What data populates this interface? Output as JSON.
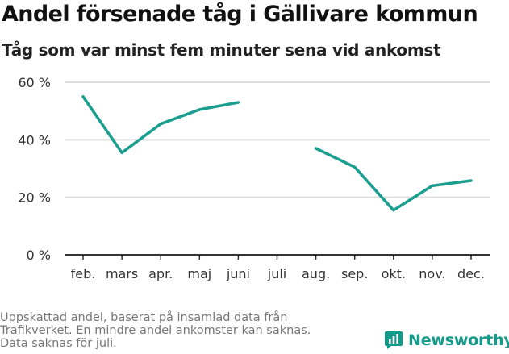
{
  "title": "Andel försenade tåg i Gällivare kommun",
  "subtitle": "Tåg som var minst fem minuter sena vid ankomst",
  "footnote": [
    "Uppskattad andel, baserat på insamlad data från",
    "Trafikverket. En mindre andel ankomster kan saknas.",
    "Data saknas för juli."
  ],
  "brand": {
    "name": "Newsworthy",
    "color": "#149a8a",
    "icon": "newsworthy-logo-icon"
  },
  "colors": {
    "line": "#1a9e8f",
    "grid": "#dddddd",
    "axis": "#333333",
    "tick_text": "#333333"
  },
  "chart_data": {
    "type": "line",
    "categories": [
      "feb.",
      "mars",
      "apr.",
      "maj",
      "juni",
      "juli",
      "aug.",
      "sep.",
      "okt.",
      "nov.",
      "dec."
    ],
    "series": [
      {
        "values": [
          55,
          35.5,
          45.5,
          50.5,
          53,
          null,
          37,
          30.5,
          15.5,
          24,
          25.8
        ]
      }
    ],
    "y_ticks": [
      0,
      20,
      40,
      60
    ],
    "y_tick_labels": [
      "0 %",
      "20 %",
      "40 %",
      "60 %"
    ],
    "ylim": [
      0,
      60
    ],
    "grid": true,
    "legend": "none"
  }
}
